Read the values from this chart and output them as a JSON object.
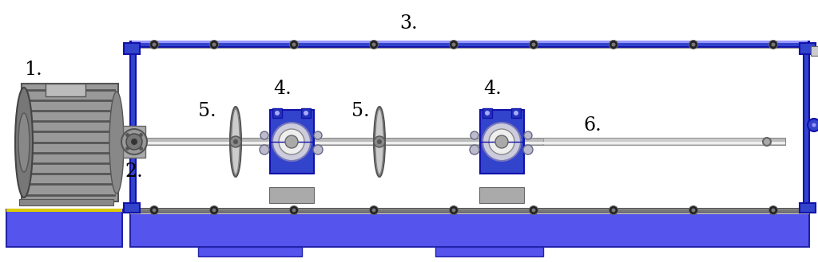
{
  "bg_color": "#ffffff",
  "blue_dark": "#1111aa",
  "blue_body": "#3344cc",
  "blue_bright": "#4455ee",
  "blue_base": "#4444dd",
  "blue_light": "#6677ff",
  "gray_light": "#cccccc",
  "gray_mid": "#999999",
  "gray_dark": "#555555",
  "steel": "#aaaaaa",
  "steel_light": "#dddddd",
  "black": "#000000",
  "yellow": "#ddcc00",
  "white": "#f0f0f0",
  "label_1": "1.",
  "label_2": "2.",
  "label_3": "3.",
  "label_4a": "4.",
  "label_4b": "4.",
  "label_5a": "5.",
  "label_5b": "5.",
  "label_6": "6.",
  "font_size_labels": 17
}
